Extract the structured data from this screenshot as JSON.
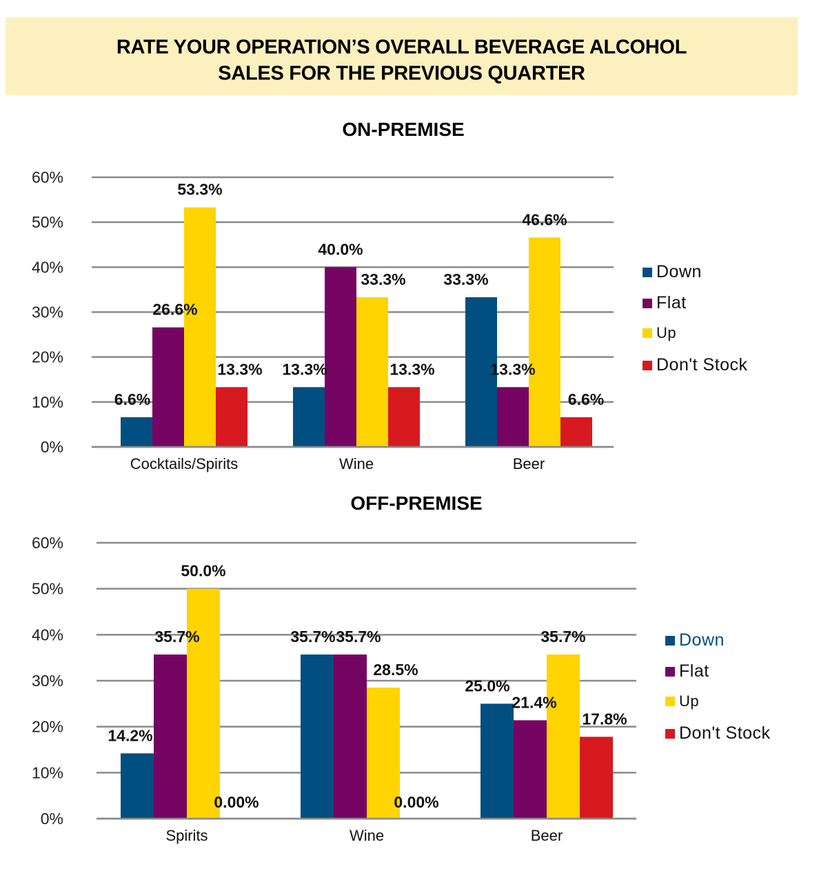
{
  "banner": {
    "line1": "RATE YOUR OPERATION’S OVERALL BEVERAGE ALCOHOL",
    "line2": "SALES FOR THE PREVIOUS QUARTER"
  },
  "colors": {
    "Down": "#004f80",
    "Flat": "#760463",
    "Up": "#ffd400",
    "Don't Stock": "#d71920",
    "gridline": "#8a8a8a",
    "banner": "#fdf0bf"
  },
  "chart_data": [
    {
      "type": "bar",
      "title": "ON-PREMISE",
      "xlabel": "",
      "ylabel": "",
      "ylim": [
        0,
        60
      ],
      "yticks": [
        "0%",
        "10%",
        "20%",
        "30%",
        "40%",
        "50%",
        "60%"
      ],
      "grid": true,
      "legend_position": "right",
      "categories": [
        "Cocktails/Spirits",
        "Wine",
        "Beer"
      ],
      "series": [
        {
          "name": "Down",
          "values": [
            6.6,
            13.3,
            33.3
          ],
          "labels": [
            "6.6%",
            "13.3%",
            "33.3%"
          ]
        },
        {
          "name": "Flat",
          "values": [
            26.6,
            40.0,
            13.3
          ],
          "labels": [
            "26.6%",
            "40.0%",
            "13.3%"
          ]
        },
        {
          "name": "Up",
          "values": [
            53.3,
            33.3,
            46.6
          ],
          "labels": [
            "53.3%",
            "33.3%",
            "46.6%"
          ]
        },
        {
          "name": "Don't Stock",
          "values": [
            13.3,
            13.3,
            6.6
          ],
          "labels": [
            "13.3%",
            "13.3%",
            "6.6%"
          ]
        }
      ]
    },
    {
      "type": "bar",
      "title": "OFF-PREMISE",
      "xlabel": "",
      "ylabel": "",
      "ylim": [
        0,
        60
      ],
      "yticks": [
        "0%",
        "10%",
        "20%",
        "30%",
        "40%",
        "50%",
        "60%"
      ],
      "grid": true,
      "legend_position": "right",
      "categories": [
        "Spirits",
        "Wine",
        "Beer"
      ],
      "series": [
        {
          "name": "Down",
          "values": [
            14.2,
            35.7,
            25.0
          ],
          "labels": [
            "14.2%",
            "35.7%",
            "25.0%"
          ]
        },
        {
          "name": "Flat",
          "values": [
            35.7,
            35.7,
            21.4
          ],
          "labels": [
            "35.7%",
            "35.7%",
            "21.4%"
          ]
        },
        {
          "name": "Up",
          "values": [
            50.0,
            28.5,
            35.7
          ],
          "labels": [
            "50.0%",
            "28.5%",
            "35.7%"
          ]
        },
        {
          "name": "Don't Stock",
          "values": [
            0.0,
            0.0,
            17.8
          ],
          "labels": [
            "0.00%",
            "0.00%",
            "17.8%"
          ]
        }
      ]
    }
  ]
}
